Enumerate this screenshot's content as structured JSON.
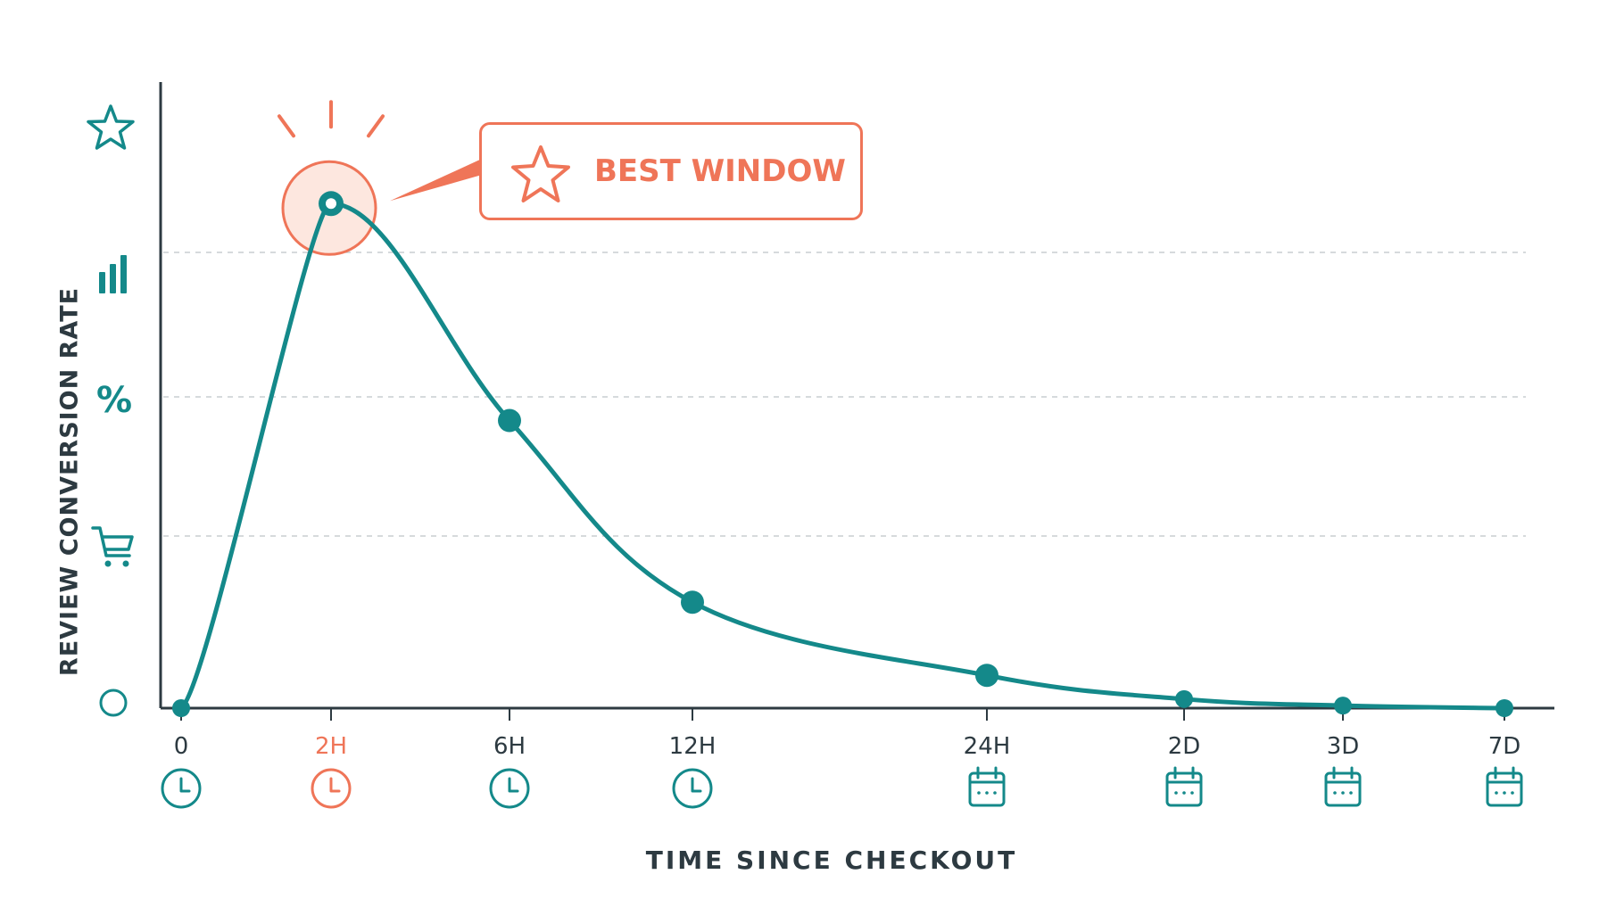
{
  "colors": {
    "teal": "#14898a",
    "accent": "#ef7558",
    "axis": "#2d3a41",
    "grid": "#c9cdd0"
  },
  "chart_data": {
    "type": "line",
    "x": [
      "0",
      "2H",
      "6H",
      "12H",
      "24H",
      "2D",
      "3D",
      "7D"
    ],
    "highlight_category": "2H",
    "series": [
      {
        "values": [
          0,
          100,
          57,
          21,
          6.5,
          1.8,
          0.5,
          0
        ]
      }
    ],
    "ylabel": "REVIEW CONVERSION RATE",
    "xlabel": "TIME SINCE CHECKOUT",
    "ylim": [
      0,
      105
    ],
    "grid": true,
    "annotation": {
      "text": "BEST WINDOW",
      "target": "2H",
      "icon": "star-icon"
    },
    "y_axis_icons": [
      "circle-icon",
      "cart-icon",
      "percent-sign",
      "bar-chart-icon",
      "star-icon"
    ],
    "y_axis_icon_text": {
      "percent": "%"
    },
    "x_axis_icons": [
      "clock-icon",
      "clock-icon",
      "clock-icon",
      "clock-icon",
      "calendar-icon",
      "calendar-icon",
      "calendar-icon",
      "calendar-icon"
    ]
  }
}
